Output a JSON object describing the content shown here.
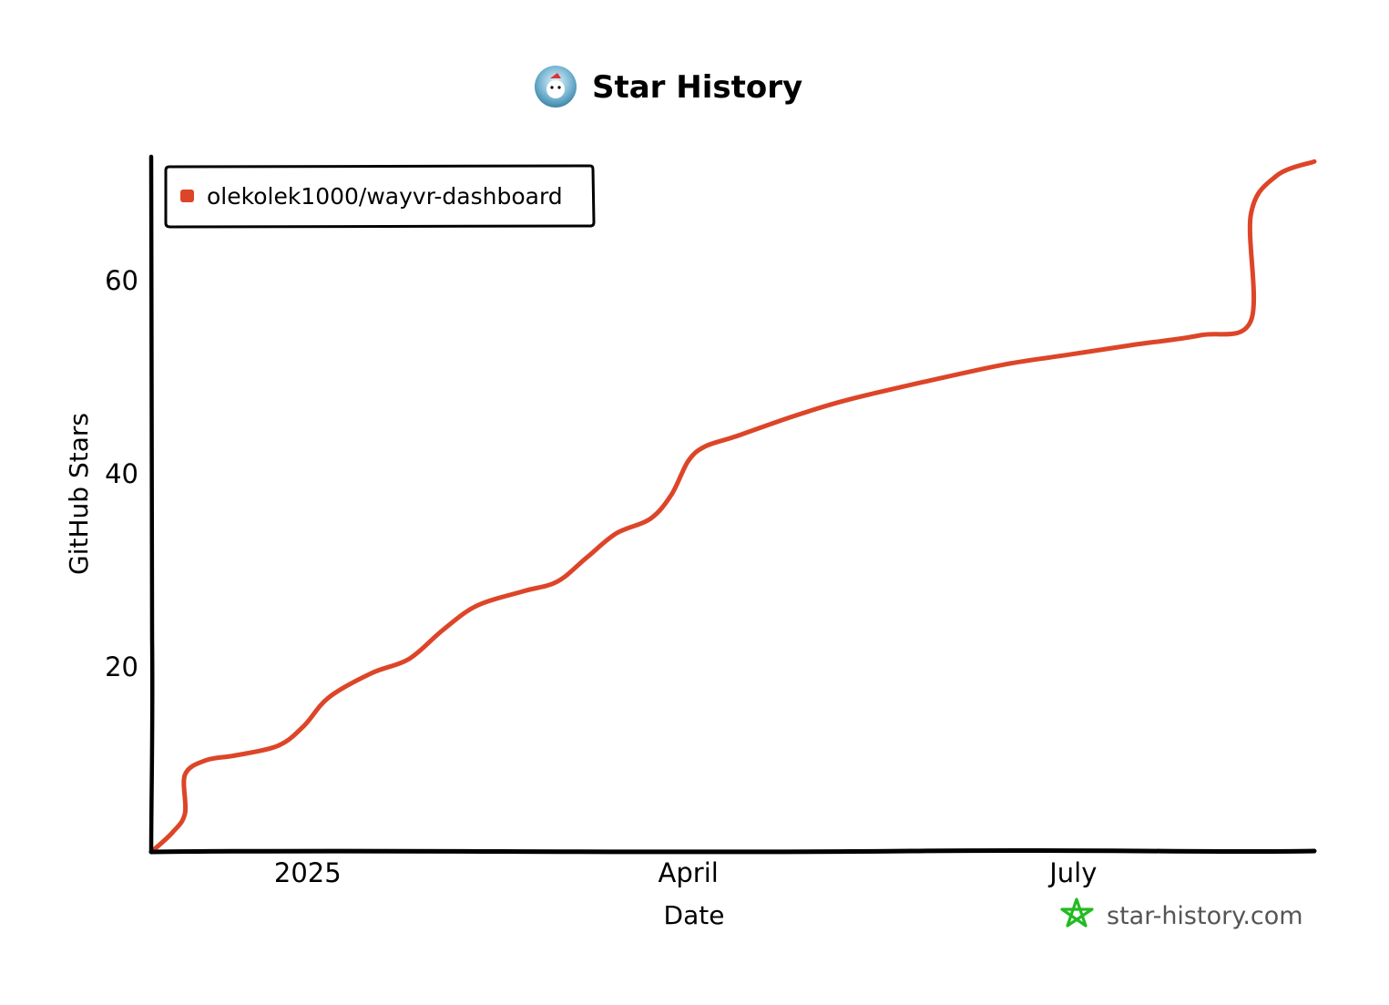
{
  "title": "Star History",
  "watermark": "star-history.com",
  "colors": {
    "series": "#dd4528",
    "watermark_star": "#22bb22",
    "axis": "#000000"
  },
  "chart_data": {
    "type": "line",
    "title": "Star History",
    "xlabel": "Date",
    "ylabel": "GitHub Stars",
    "x_ticks": [
      {
        "label": "2025",
        "date": "2025-01-01"
      },
      {
        "label": "April",
        "date": "2025-04-01"
      },
      {
        "label": "July",
        "date": "2025-07-01"
      }
    ],
    "y_ticks": [
      20,
      40,
      60
    ],
    "xlim": [
      "2024-11-25",
      "2025-08-27"
    ],
    "ylim": [
      0,
      72
    ],
    "grid": false,
    "legend_position": "top-left",
    "series": [
      {
        "name": "olekolek1000/wayvr-dashboard",
        "color": "#dd4528",
        "points": [
          {
            "x": "2024-11-25",
            "y": 0
          },
          {
            "x": "2024-11-30",
            "y": 2
          },
          {
            "x": "2024-12-03",
            "y": 4
          },
          {
            "x": "2024-12-03",
            "y": 8
          },
          {
            "x": "2024-12-08",
            "y": 9.5
          },
          {
            "x": "2024-12-15",
            "y": 10
          },
          {
            "x": "2024-12-25",
            "y": 11
          },
          {
            "x": "2024-12-31",
            "y": 13
          },
          {
            "x": "2025-01-06",
            "y": 16
          },
          {
            "x": "2025-01-16",
            "y": 18.5
          },
          {
            "x": "2025-01-25",
            "y": 20
          },
          {
            "x": "2025-02-02",
            "y": 23
          },
          {
            "x": "2025-02-10",
            "y": 25.5
          },
          {
            "x": "2025-02-21",
            "y": 27
          },
          {
            "x": "2025-03-01",
            "y": 28
          },
          {
            "x": "2025-03-08",
            "y": 30.5
          },
          {
            "x": "2025-03-15",
            "y": 33
          },
          {
            "x": "2025-03-23",
            "y": 34.5
          },
          {
            "x": "2025-03-28",
            "y": 37
          },
          {
            "x": "2025-04-01",
            "y": 40.5
          },
          {
            "x": "2025-04-05",
            "y": 42
          },
          {
            "x": "2025-04-12",
            "y": 43
          },
          {
            "x": "2025-04-25",
            "y": 45
          },
          {
            "x": "2025-05-06",
            "y": 46.5
          },
          {
            "x": "2025-05-15",
            "y": 47.5
          },
          {
            "x": "2025-05-30",
            "y": 49
          },
          {
            "x": "2025-06-15",
            "y": 50.5
          },
          {
            "x": "2025-06-30",
            "y": 51.5
          },
          {
            "x": "2025-07-15",
            "y": 52.5
          },
          {
            "x": "2025-07-31",
            "y": 53.5
          },
          {
            "x": "2025-08-12",
            "y": 55
          },
          {
            "x": "2025-08-12",
            "y": 66
          },
          {
            "x": "2025-08-18",
            "y": 70
          },
          {
            "x": "2025-08-27",
            "y": 71.5
          }
        ]
      }
    ]
  }
}
